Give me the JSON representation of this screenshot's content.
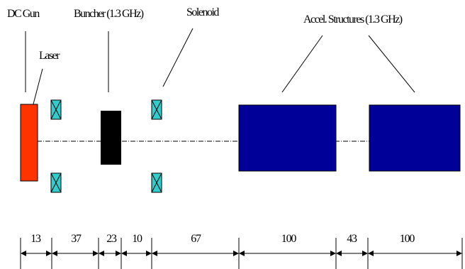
{
  "labels": {
    "dc_gun": "DC Gun",
    "buncher": "Buncher (1.3 GHz)",
    "solenoid": "Solenoid",
    "accel_structures": "Accel. Structures (1.3 GHz)",
    "laser": "Laser"
  },
  "dimensions": [
    "13",
    "37",
    "23",
    "10",
    "67",
    "100",
    "43",
    "100"
  ],
  "colors": {
    "gun": "#ff3300",
    "buncher": "#000000",
    "solenoid": "#33cccc",
    "accel": "#000099"
  }
}
